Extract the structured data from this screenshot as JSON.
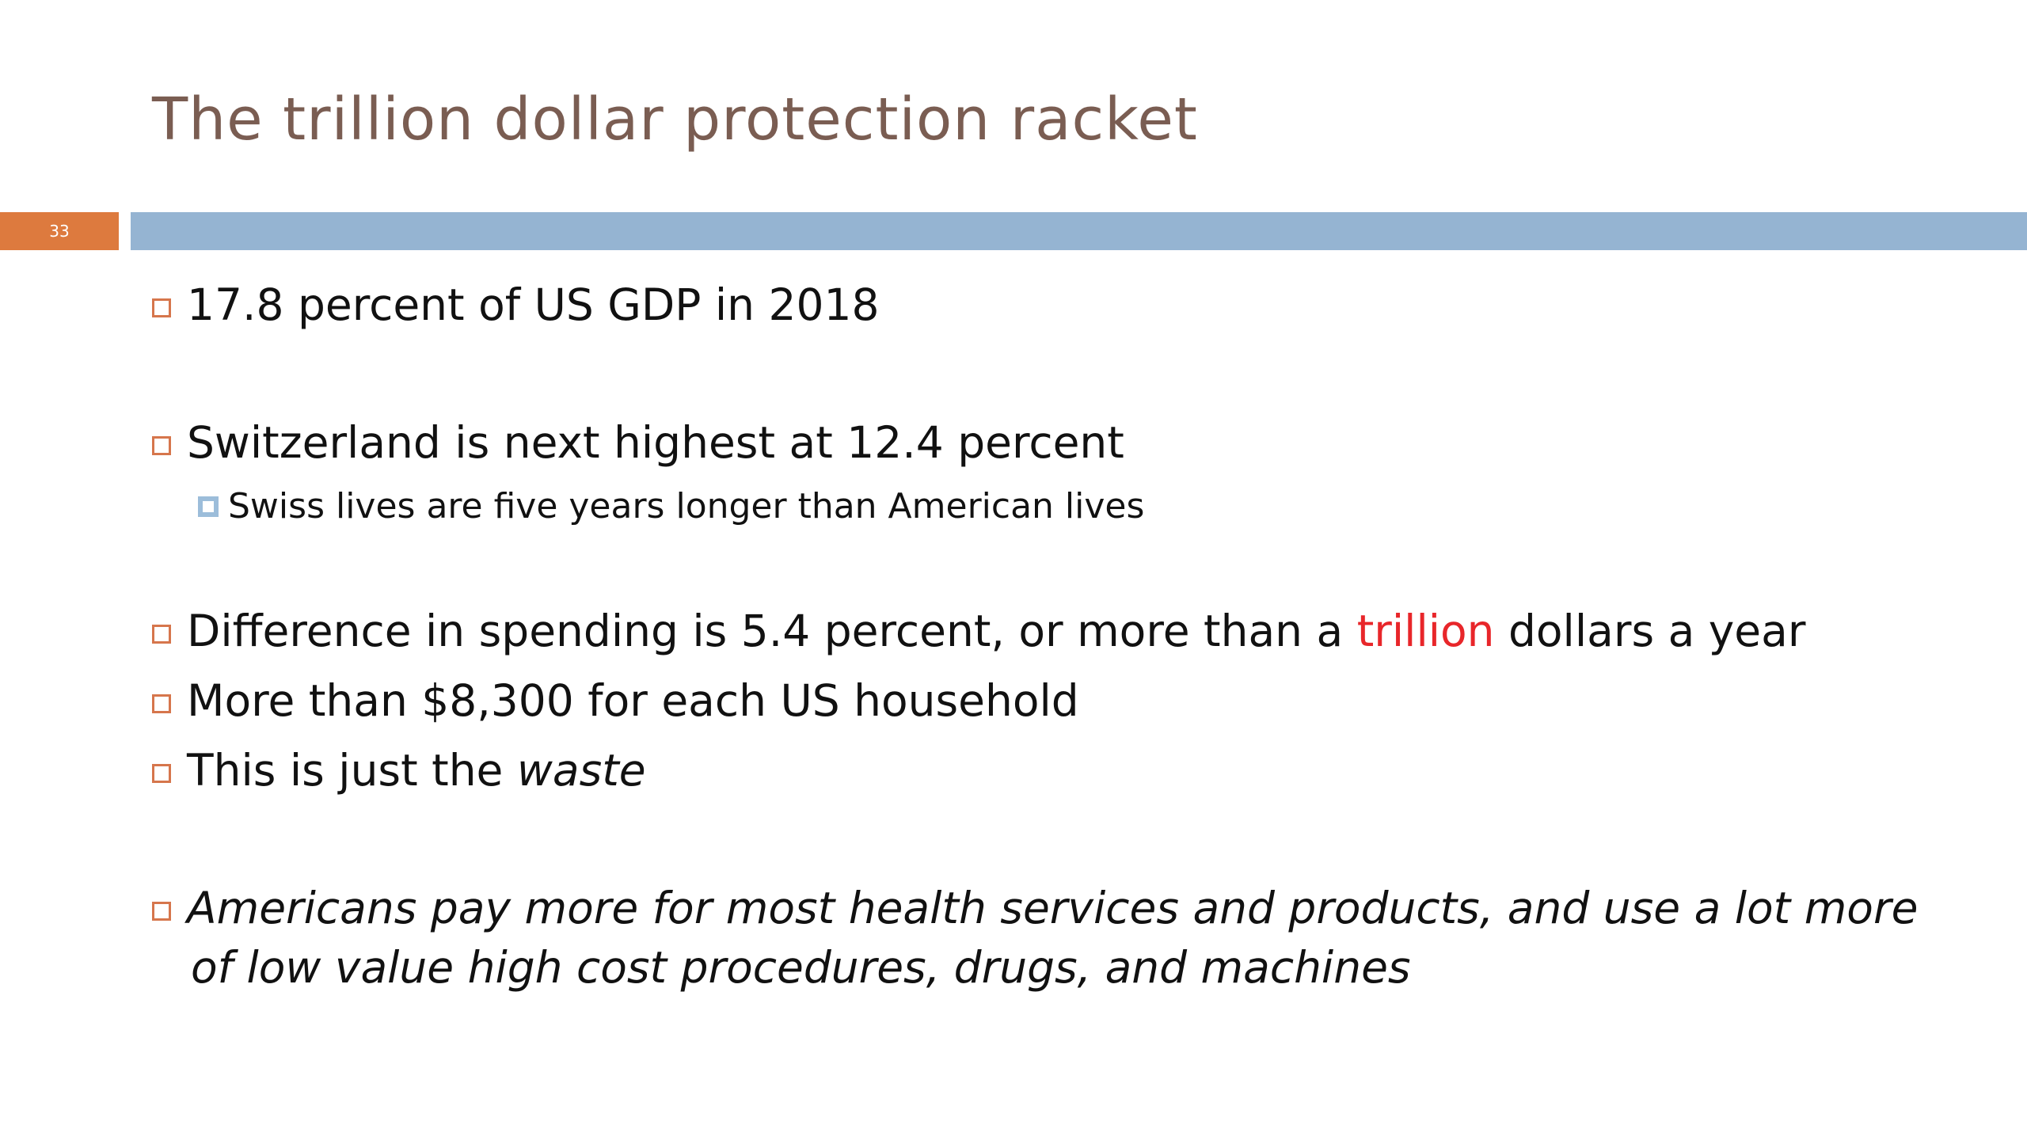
{
  "slide": {
    "title": "The trillion dollar protection racket",
    "slide_number": "33",
    "bullets": [
      {
        "text": "17.8 percent of US GDP in 2018"
      },
      {
        "text": "Switzerland is next highest at 12.4 percent"
      },
      {
        "text": "Swiss lives are five years longer than American lives"
      },
      {
        "before": "Difference in spending is 5.4 percent, or more than a ",
        "highlight": "trillion",
        "after": " dollars a year"
      },
      {
        "text": "More than $8,300 for each US household"
      },
      {
        "before": "This is just the ",
        "emph": "waste"
      },
      {
        "text": "Americans pay more for most health services and products, and use a lot more of low value high cost procedures, drugs, and machines"
      }
    ]
  },
  "colors": {
    "title": "#7a5d52",
    "number_box": "#dd7a3e",
    "rule": "#95b4d2",
    "highlight": "#e8262a",
    "bullet_box": "#d6764c",
    "sub_bullet_box": "#9cbdda"
  }
}
